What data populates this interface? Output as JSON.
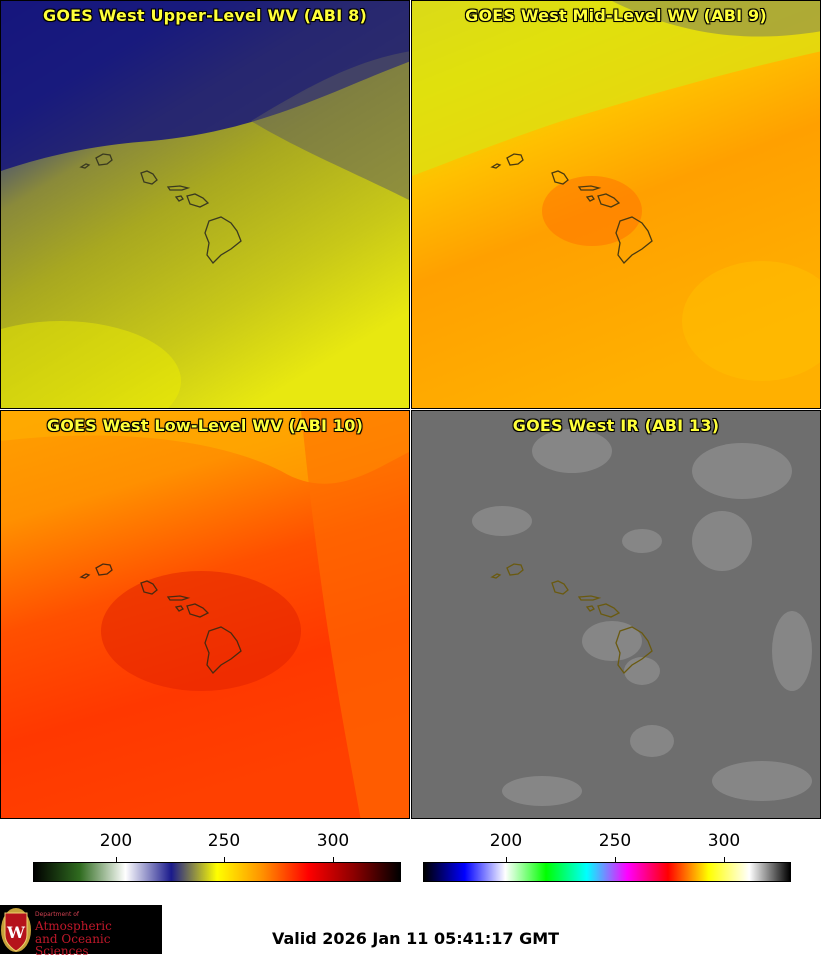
{
  "panels": [
    {
      "title": "GOES West Upper-Level WV (ABI 8)"
    },
    {
      "title": "GOES West Mid-Level WV (ABI 9)"
    },
    {
      "title": "GOES West Low-Level WV (ABI 10)"
    },
    {
      "title": "GOES West IR (ABI 13)"
    }
  ],
  "colorbar_left": {
    "ticks": [
      "200",
      "250",
      "300"
    ],
    "colors": [
      "#000000",
      "#2f6b1f",
      "#ffffff",
      "#1a1a8c",
      "#ffff00",
      "#ff9000",
      "#ff0000",
      "#8b0000",
      "#000000"
    ]
  },
  "colorbar_right": {
    "ticks": [
      "200",
      "250",
      "300"
    ],
    "colors": [
      "#000000",
      "#0000ff",
      "#ffffff",
      "#00ff00",
      "#00ffff",
      "#ff00ff",
      "#ff0000",
      "#ffff00",
      "#ffffff",
      "#000000"
    ]
  },
  "logo": {
    "line1": "Department of",
    "line2": "Atmospheric",
    "line3": "and Oceanic Sciences"
  },
  "valid_text": "Valid 2026 Jan 11 05:41:17 GMT"
}
